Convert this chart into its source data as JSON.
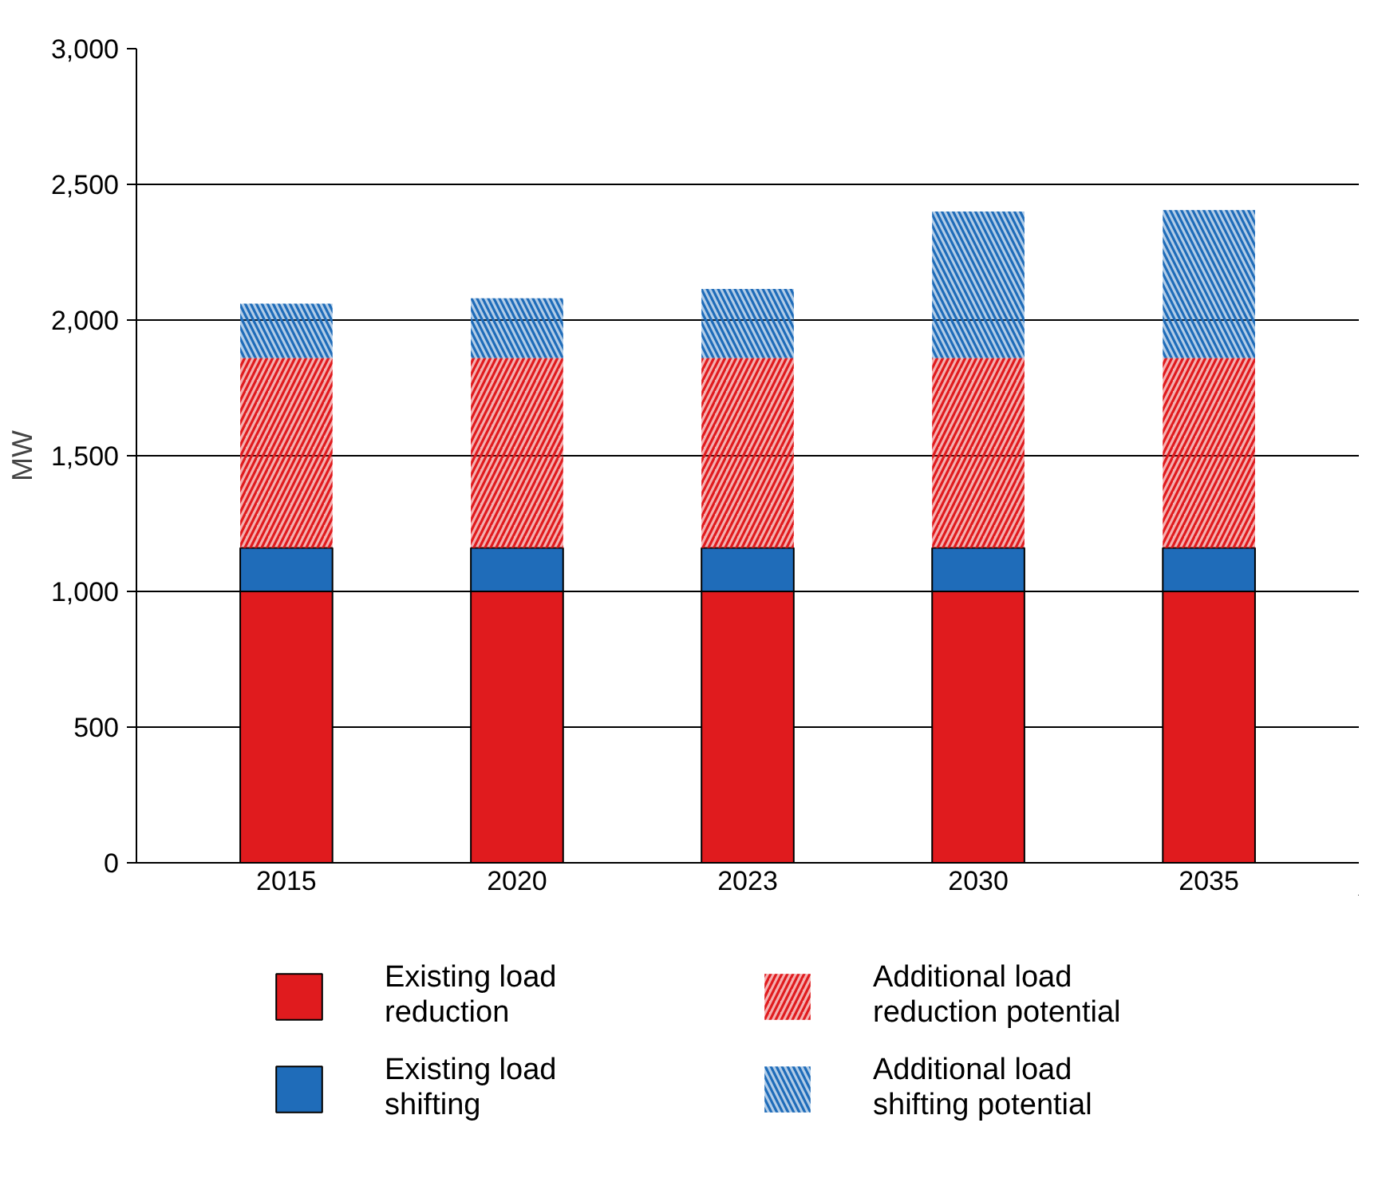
{
  "chart_data": {
    "type": "bar",
    "stacked": true,
    "ylabel": "MW",
    "categories": [
      "2015",
      "2020",
      "2023",
      "2030",
      "2035"
    ],
    "series": [
      {
        "name": "Existing load reduction",
        "color": "#e01b1e",
        "values": [
          1000,
          1000,
          1000,
          1000,
          1000
        ]
      },
      {
        "name": "Existing load shifting",
        "color": "#1f6cb9",
        "values": [
          160,
          160,
          160,
          160,
          160
        ]
      },
      {
        "name": "Additional load reduction potential",
        "color": "#e01b1e",
        "values": [
          700,
          700,
          700,
          700,
          700
        ]
      },
      {
        "name": "Additional load shifting potential",
        "color": "#1f6cb9",
        "values": [
          200,
          220,
          255,
          540,
          545
        ]
      }
    ],
    "ylim": [
      0,
      3000
    ],
    "yticks": [
      0,
      {
        "value": 500,
        "label": "500"
      },
      {
        "value": 1000,
        "label": "1,000"
      },
      {
        "value": 1500,
        "label": "1,500"
      },
      {
        "value": 2000,
        "label": "2,000"
      },
      {
        "value": 2500,
        "label": "2,500"
      },
      {
        "value": 3000,
        "label": "3,000"
      }
    ],
    "grid": "y",
    "legend": "bottom"
  }
}
